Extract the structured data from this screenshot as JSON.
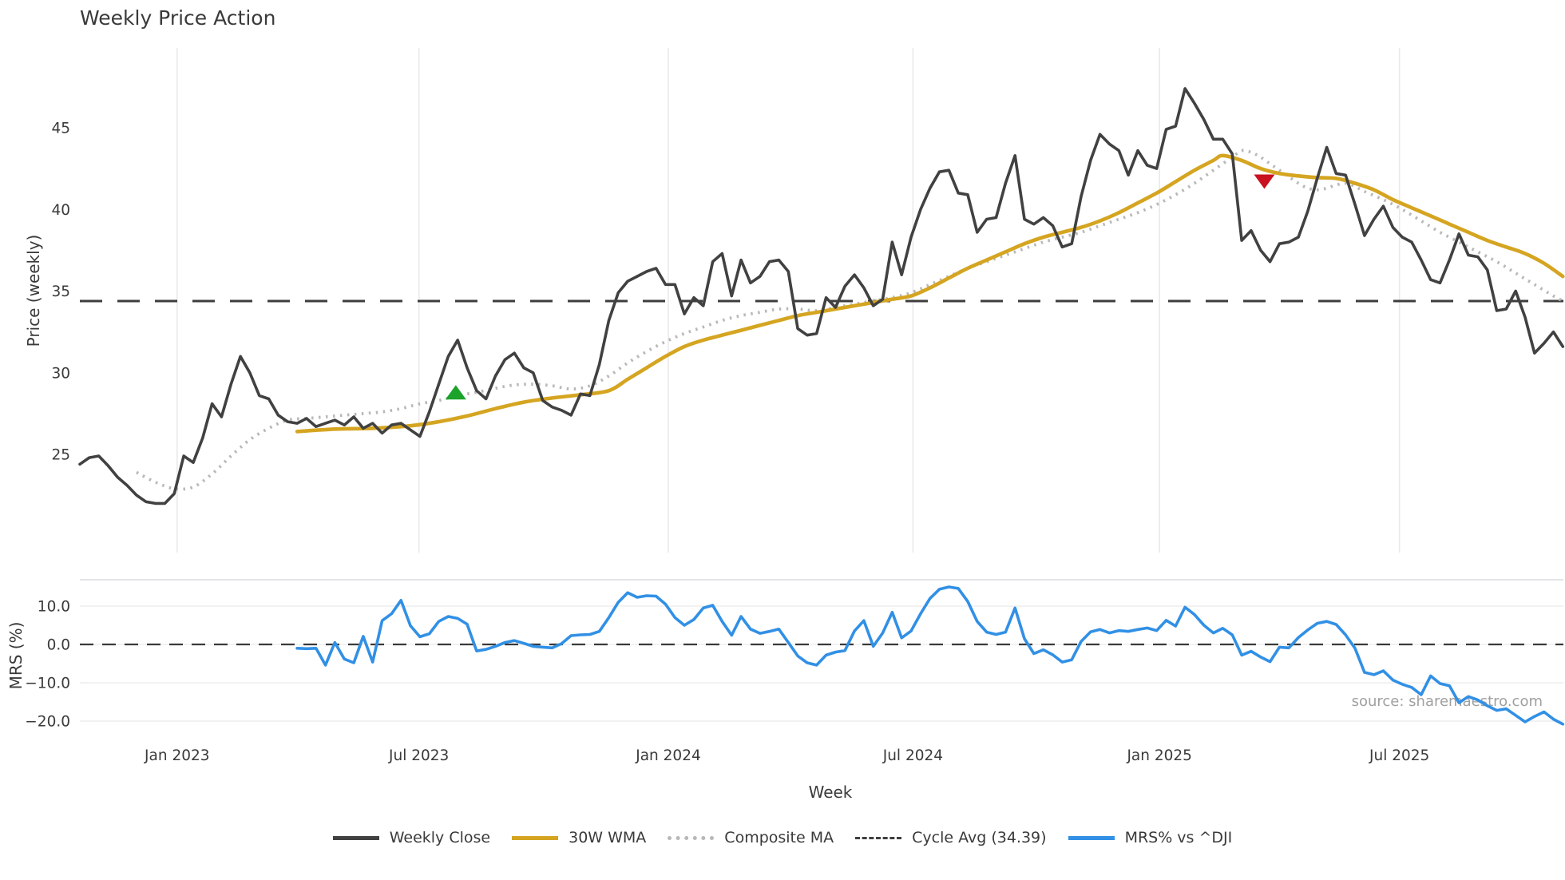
{
  "chart_data": {
    "type": "line",
    "title": "Weekly Price Action",
    "xlabel": "Week",
    "source_note": "source: sharemaestro.com",
    "panels": [
      {
        "ylabel": "Price (weekly)",
        "ylim": [
          19.1,
          49.9
        ],
        "yticks": [
          {
            "v": 25,
            "label": "25"
          },
          {
            "v": 30,
            "label": "30"
          },
          {
            "v": 35,
            "label": "35"
          },
          {
            "v": 40,
            "label": "40"
          },
          {
            "v": 45,
            "label": "45"
          }
        ],
        "grid": "vertical"
      },
      {
        "ylabel": "MRS (%)",
        "ylim": [
          -21.5,
          16.9
        ],
        "yticks": [
          {
            "v": 10,
            "label": "10.0"
          },
          {
            "v": 0,
            "label": "0.0"
          },
          {
            "v": -10,
            "label": "−10.0"
          },
          {
            "v": -20,
            "label": "−20.0"
          }
        ],
        "grid": "horizontal"
      }
    ],
    "x_ticks": [
      {
        "i": 10.3,
        "label": "Jan 2023"
      },
      {
        "i": 35.9,
        "label": "Jul 2023"
      },
      {
        "i": 62.3,
        "label": "Jan 2024"
      },
      {
        "i": 88.2,
        "label": "Jul 2024"
      },
      {
        "i": 114.3,
        "label": "Jan 2025"
      },
      {
        "i": 139.7,
        "label": "Jul 2025"
      }
    ],
    "series": {
      "weekly_close": {
        "name": "Weekly Close",
        "color": "#414141",
        "start_index": 0,
        "values": [
          24.4,
          24.8,
          24.9,
          24.3,
          23.6,
          23.1,
          22.5,
          22.1,
          22.0,
          22.0,
          22.6,
          24.9,
          24.5,
          26.0,
          28.1,
          27.3,
          29.3,
          31.0,
          30.0,
          28.6,
          28.4,
          27.4,
          27.0,
          26.9,
          27.2,
          26.7,
          26.9,
          27.1,
          26.8,
          27.3,
          26.6,
          26.9,
          26.3,
          26.8,
          26.9,
          26.5,
          26.1,
          27.6,
          29.3,
          31.0,
          32.0,
          30.3,
          28.9,
          28.4,
          29.8,
          30.8,
          31.2,
          30.3,
          30.0,
          28.3,
          27.9,
          27.7,
          27.4,
          28.7,
          28.6,
          30.5,
          33.2,
          34.9,
          35.6,
          35.9,
          36.2,
          36.4,
          35.4,
          35.4,
          33.6,
          34.6,
          34.1,
          36.8,
          37.3,
          34.7,
          36.9,
          35.5,
          35.9,
          36.8,
          36.9,
          36.2,
          32.7,
          32.3,
          32.4,
          34.6,
          34.0,
          35.3,
          36.0,
          35.2,
          34.1,
          34.5,
          38.0,
          36.0,
          38.3,
          40.0,
          41.3,
          42.3,
          42.4,
          41.0,
          40.9,
          38.6,
          39.4,
          39.5,
          41.6,
          43.3,
          39.4,
          39.1,
          39.5,
          39.0,
          37.7,
          37.9,
          40.8,
          43.0,
          44.6,
          44.0,
          43.6,
          42.1,
          43.6,
          42.7,
          42.5,
          44.9,
          45.1,
          47.4,
          46.5,
          45.5,
          44.3,
          44.3,
          43.4,
          38.1,
          38.7,
          37.5,
          36.8,
          37.9,
          38.0,
          38.3,
          39.9,
          41.9,
          43.8,
          42.2,
          42.1,
          40.3,
          38.4,
          39.4,
          40.2,
          38.9,
          38.3,
          38.0,
          36.9,
          35.7,
          35.5,
          36.9,
          38.5,
          37.2,
          37.1,
          36.3,
          33.8,
          33.9,
          35.0,
          33.4,
          31.2,
          31.8,
          32.5,
          31.6
        ]
      },
      "wma30": {
        "name": "30W WMA",
        "color": "#d5a521",
        "points": [
          [
            23,
            26.4
          ],
          [
            27,
            26.55
          ],
          [
            31,
            26.6
          ],
          [
            35,
            26.75
          ],
          [
            38,
            27.0
          ],
          [
            41,
            27.35
          ],
          [
            44,
            27.8
          ],
          [
            47,
            28.2
          ],
          [
            50,
            28.45
          ],
          [
            53,
            28.65
          ],
          [
            56,
            28.9
          ],
          [
            58,
            29.6
          ],
          [
            60,
            30.3
          ],
          [
            62,
            31.0
          ],
          [
            64,
            31.6
          ],
          [
            66,
            32.0
          ],
          [
            68,
            32.3
          ],
          [
            70,
            32.6
          ],
          [
            72,
            32.9
          ],
          [
            74,
            33.2
          ],
          [
            76,
            33.5
          ],
          [
            78,
            33.7
          ],
          [
            80,
            33.9
          ],
          [
            82,
            34.1
          ],
          [
            84,
            34.3
          ],
          [
            86,
            34.5
          ],
          [
            88,
            34.7
          ],
          [
            90,
            35.2
          ],
          [
            92,
            35.8
          ],
          [
            94,
            36.4
          ],
          [
            96,
            36.9
          ],
          [
            98,
            37.4
          ],
          [
            100,
            37.9
          ],
          [
            102,
            38.3
          ],
          [
            104,
            38.6
          ],
          [
            106,
            38.9
          ],
          [
            108,
            39.3
          ],
          [
            110,
            39.8
          ],
          [
            112,
            40.4
          ],
          [
            114,
            41.0
          ],
          [
            116,
            41.7
          ],
          [
            118,
            42.4
          ],
          [
            120,
            43.0
          ],
          [
            121,
            43.3
          ],
          [
            123,
            43.0
          ],
          [
            125,
            42.5
          ],
          [
            127,
            42.2
          ],
          [
            129,
            42.05
          ],
          [
            131,
            41.95
          ],
          [
            133,
            41.9
          ],
          [
            135,
            41.6
          ],
          [
            137,
            41.2
          ],
          [
            139,
            40.6
          ],
          [
            141,
            40.1
          ],
          [
            143,
            39.6
          ],
          [
            145,
            39.1
          ],
          [
            147,
            38.6
          ],
          [
            149,
            38.1
          ],
          [
            151,
            37.7
          ],
          [
            153,
            37.3
          ],
          [
            155,
            36.7
          ],
          [
            157,
            35.9
          ]
        ]
      },
      "composite": {
        "name": "Composite MA",
        "color": "#b8b8b8",
        "points": [
          [
            6,
            23.9
          ],
          [
            8,
            23.3
          ],
          [
            10,
            22.9
          ],
          [
            12,
            23.0
          ],
          [
            14,
            23.8
          ],
          [
            16,
            24.9
          ],
          [
            18,
            25.9
          ],
          [
            20,
            26.6
          ],
          [
            22,
            27.1
          ],
          [
            24,
            27.2
          ],
          [
            26,
            27.3
          ],
          [
            28,
            27.4
          ],
          [
            30,
            27.5
          ],
          [
            32,
            27.6
          ],
          [
            34,
            27.8
          ],
          [
            36,
            28.1
          ],
          [
            38,
            28.3
          ],
          [
            40,
            28.6
          ],
          [
            42,
            28.8
          ],
          [
            44,
            29.05
          ],
          [
            46,
            29.25
          ],
          [
            48,
            29.3
          ],
          [
            50,
            29.2
          ],
          [
            52,
            29.0
          ],
          [
            54,
            29.2
          ],
          [
            56,
            29.8
          ],
          [
            58,
            30.6
          ],
          [
            60,
            31.3
          ],
          [
            62,
            31.9
          ],
          [
            64,
            32.4
          ],
          [
            66,
            32.8
          ],
          [
            68,
            33.2
          ],
          [
            70,
            33.5
          ],
          [
            72,
            33.7
          ],
          [
            74,
            33.9
          ],
          [
            76,
            33.9
          ],
          [
            78,
            33.8
          ],
          [
            80,
            34.0
          ],
          [
            82,
            34.2
          ],
          [
            84,
            34.4
          ],
          [
            86,
            34.6
          ],
          [
            88,
            34.9
          ],
          [
            90,
            35.4
          ],
          [
            92,
            35.9
          ],
          [
            94,
            36.4
          ],
          [
            96,
            36.8
          ],
          [
            98,
            37.2
          ],
          [
            100,
            37.6
          ],
          [
            102,
            38.0
          ],
          [
            104,
            38.3
          ],
          [
            106,
            38.6
          ],
          [
            108,
            39.0
          ],
          [
            110,
            39.4
          ],
          [
            112,
            39.8
          ],
          [
            114,
            40.3
          ],
          [
            116,
            40.9
          ],
          [
            118,
            41.6
          ],
          [
            120,
            42.4
          ],
          [
            122,
            43.2
          ],
          [
            123,
            43.6
          ],
          [
            124,
            43.5
          ],
          [
            125,
            43.2
          ],
          [
            126,
            42.8
          ],
          [
            127,
            42.4
          ],
          [
            128,
            42.0
          ],
          [
            129,
            41.6
          ],
          [
            130,
            41.3
          ],
          [
            131,
            41.2
          ],
          [
            132,
            41.3
          ],
          [
            133,
            41.5
          ],
          [
            134,
            41.6
          ],
          [
            135,
            41.4
          ],
          [
            136,
            41.1
          ],
          [
            138,
            40.6
          ],
          [
            140,
            40.0
          ],
          [
            142,
            39.3
          ],
          [
            144,
            38.6
          ],
          [
            146,
            38.0
          ],
          [
            148,
            37.4
          ],
          [
            150,
            36.8
          ],
          [
            152,
            36.1
          ],
          [
            154,
            35.4
          ],
          [
            156,
            34.7
          ],
          [
            157,
            34.4
          ]
        ]
      },
      "cycle_avg": {
        "name": "Cycle Avg (34.39)",
        "color": "#3d3d3d",
        "value": 34.39
      },
      "mrs": {
        "name": "MRS% vs ^DJI",
        "color": "#3190e5",
        "start_index": 23,
        "values": [
          -1.0,
          -1.1,
          -1.0,
          -5.4,
          0.5,
          -3.8,
          -4.8,
          2.1,
          -4.6,
          6.2,
          8.0,
          11.5,
          4.9,
          2.0,
          2.8,
          6.0,
          7.3,
          6.8,
          5.3,
          -1.7,
          -1.3,
          -0.5,
          0.5,
          1.0,
          0.3,
          -0.5,
          -0.7,
          -0.9,
          0.2,
          2.3,
          2.5,
          2.6,
          3.4,
          7.0,
          11.0,
          13.5,
          12.3,
          12.7,
          12.6,
          10.5,
          7.0,
          5.0,
          6.5,
          9.5,
          10.2,
          6.0,
          2.4,
          7.3,
          4.0,
          2.9,
          3.4,
          4.0,
          0.5,
          -3.0,
          -4.8,
          -5.4,
          -2.8,
          -2.0,
          -1.6,
          3.5,
          6.2,
          -0.5,
          3.0,
          8.4,
          1.7,
          3.5,
          8.0,
          12.0,
          14.4,
          15.0,
          14.6,
          11.2,
          6.0,
          3.2,
          2.6,
          3.2,
          9.5,
          1.5,
          -2.4,
          -1.4,
          -2.7,
          -4.6,
          -4.0,
          0.8,
          3.3,
          3.9,
          3.0,
          3.6,
          3.4,
          3.9,
          4.3,
          3.6,
          6.3,
          4.8,
          9.7,
          7.8,
          5.0,
          3.0,
          4.2,
          2.5,
          -2.8,
          -1.8,
          -3.3,
          -4.5,
          -0.7,
          -0.9,
          1.8,
          3.8,
          5.5,
          6.0,
          5.2,
          2.5,
          -1.0,
          -7.3,
          -7.9,
          -6.9,
          -9.3,
          -10.4,
          -11.2,
          -13.1,
          -8.2,
          -10.2,
          -10.8,
          -15.2,
          -13.6,
          -14.5,
          -16.0,
          -17.2,
          -16.8,
          -18.5,
          -20.2,
          -18.8,
          -17.6,
          -19.5,
          -20.8
        ]
      }
    },
    "markers": [
      {
        "kind": "up-triangle",
        "color": "#1ba32a",
        "i": 39.8,
        "price": 28.8
      },
      {
        "kind": "down-triangle",
        "color": "#c9121f",
        "i": 125.4,
        "price": 41.7
      }
    ],
    "legend": {
      "items": [
        {
          "label": "Weekly Close"
        },
        {
          "label": "30W WMA"
        },
        {
          "label": "Composite MA"
        },
        {
          "label": "Cycle Avg (34.39)"
        },
        {
          "label": "MRS% vs ^DJI"
        }
      ]
    }
  }
}
